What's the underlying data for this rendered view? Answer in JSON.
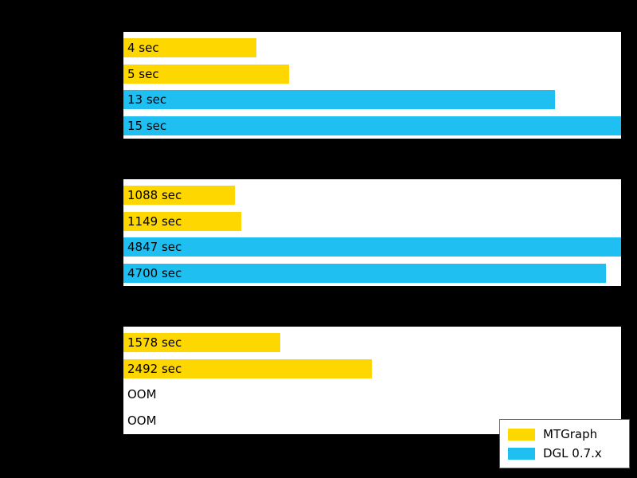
{
  "colors": {
    "mtgraph": "#FFD700",
    "dgl": "#1FBFF2",
    "background": "#000000",
    "panel": "#FFFFFF",
    "text": "#000000"
  },
  "legend": {
    "items": [
      {
        "label": "MTGraph",
        "color_key": "mtgraph"
      },
      {
        "label": "DGL 0.7.x",
        "color_key": "dgl"
      }
    ]
  },
  "chart_data": [
    {
      "type": "bar",
      "orientation": "horizontal",
      "xlim": [
        0,
        15
      ],
      "bars": [
        {
          "label": "4 sec",
          "value": 4,
          "series": "MTGraph",
          "color_key": "mtgraph"
        },
        {
          "label": "5 sec",
          "value": 5,
          "series": "MTGraph",
          "color_key": "mtgraph"
        },
        {
          "label": "13 sec",
          "value": 13,
          "series": "DGL 0.7.x",
          "color_key": "dgl"
        },
        {
          "label": "15 sec",
          "value": 15,
          "series": "DGL 0.7.x",
          "color_key": "dgl"
        }
      ]
    },
    {
      "type": "bar",
      "orientation": "horizontal",
      "xlim": [
        0,
        4847
      ],
      "bars": [
        {
          "label": "1088 sec",
          "value": 1088,
          "series": "MTGraph",
          "color_key": "mtgraph"
        },
        {
          "label": "1149 sec",
          "value": 1149,
          "series": "MTGraph",
          "color_key": "mtgraph"
        },
        {
          "label": "4847 sec",
          "value": 4847,
          "series": "DGL 0.7.x",
          "color_key": "dgl"
        },
        {
          "label": "4700 sec",
          "value": 4700,
          "series": "DGL 0.7.x",
          "color_key": "dgl"
        }
      ]
    },
    {
      "type": "bar",
      "orientation": "horizontal",
      "xlim": [
        0,
        5000
      ],
      "bars": [
        {
          "label": "1578 sec",
          "value": 1578,
          "series": "MTGraph",
          "color_key": "mtgraph"
        },
        {
          "label": "2492 sec",
          "value": 2492,
          "series": "MTGraph",
          "color_key": "mtgraph"
        },
        {
          "label": "OOM",
          "value": null,
          "series": "DGL 0.7.x",
          "color_key": "dgl"
        },
        {
          "label": "OOM",
          "value": null,
          "series": "DGL 0.7.x",
          "color_key": "dgl"
        }
      ]
    }
  ]
}
